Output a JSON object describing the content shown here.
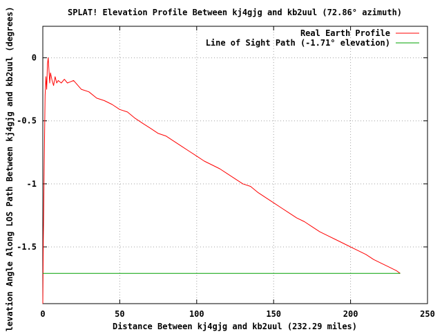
{
  "chart_data": {
    "type": "line",
    "title": "SPLAT! Elevation Profile Between kj4gjg and kb2uul (72.86° azimuth)",
    "xlabel": "Distance Between kj4gjg and kb2uul (232.29 miles)",
    "ylabel": "Elevation Angle Along LOS Path Between kj4gjg and kb2uul (degrees)",
    "xlim": [
      0,
      250
    ],
    "ylim": [
      -1.95,
      0.25
    ],
    "x_ticks": [
      "0",
      "50",
      "100",
      "150",
      "200",
      "250"
    ],
    "x_tick_values": [
      0,
      50,
      100,
      150,
      200,
      250
    ],
    "y_ticks": [
      "0",
      "-0.5",
      "-1",
      "-1.5"
    ],
    "y_tick_values": [
      0,
      -0.5,
      -1,
      -1.5
    ],
    "grid": true,
    "legend_position": "top-right",
    "series": [
      {
        "name": "Real Earth Profile",
        "color": "#ff0000",
        "x": [
          0,
          0.3,
          0.6,
          0.9,
          1.2,
          1.5,
          2.0,
          2.5,
          3.0,
          3.5,
          4.0,
          4.5,
          5.0,
          6.0,
          7.0,
          8.0,
          9.0,
          10.0,
          12.0,
          14.0,
          16.0,
          18.0,
          20.0,
          25.0,
          30.0,
          35.0,
          40.0,
          45.0,
          50.0,
          55.0,
          60.0,
          65.0,
          70.0,
          75.0,
          80.0,
          85.0,
          90.0,
          95.0,
          100.0,
          105.0,
          110.0,
          115.0,
          120.0,
          125.0,
          130.0,
          135.0,
          140.0,
          145.0,
          150.0,
          155.0,
          160.0,
          165.0,
          170.0,
          175.0,
          180.0,
          185.0,
          190.0,
          195.0,
          200.0,
          205.0,
          210.0,
          215.0,
          220.0,
          225.0,
          230.0,
          232.29
        ],
        "y": [
          -1.95,
          -1.45,
          -1.2,
          -0.85,
          -0.55,
          -0.3,
          -0.15,
          -0.25,
          -0.05,
          0.0,
          -0.1,
          -0.2,
          -0.12,
          -0.18,
          -0.22,
          -0.15,
          -0.2,
          -0.18,
          -0.2,
          -0.17,
          -0.2,
          -0.19,
          -0.18,
          -0.25,
          -0.27,
          -0.32,
          -0.34,
          -0.37,
          -0.41,
          -0.43,
          -0.48,
          -0.52,
          -0.56,
          -0.6,
          -0.62,
          -0.66,
          -0.7,
          -0.74,
          -0.78,
          -0.82,
          -0.85,
          -0.88,
          -0.92,
          -0.96,
          -1.0,
          -1.02,
          -1.07,
          -1.11,
          -1.15,
          -1.19,
          -1.23,
          -1.27,
          -1.3,
          -1.34,
          -1.38,
          -1.41,
          -1.44,
          -1.47,
          -1.5,
          -1.53,
          -1.56,
          -1.6,
          -1.63,
          -1.66,
          -1.69,
          -1.71
        ]
      },
      {
        "name": "Line of Sight Path (-1.71° elevation)",
        "color": "#00a000",
        "x": [
          0,
          232.29
        ],
        "y": [
          -1.71,
          -1.71
        ]
      }
    ]
  }
}
